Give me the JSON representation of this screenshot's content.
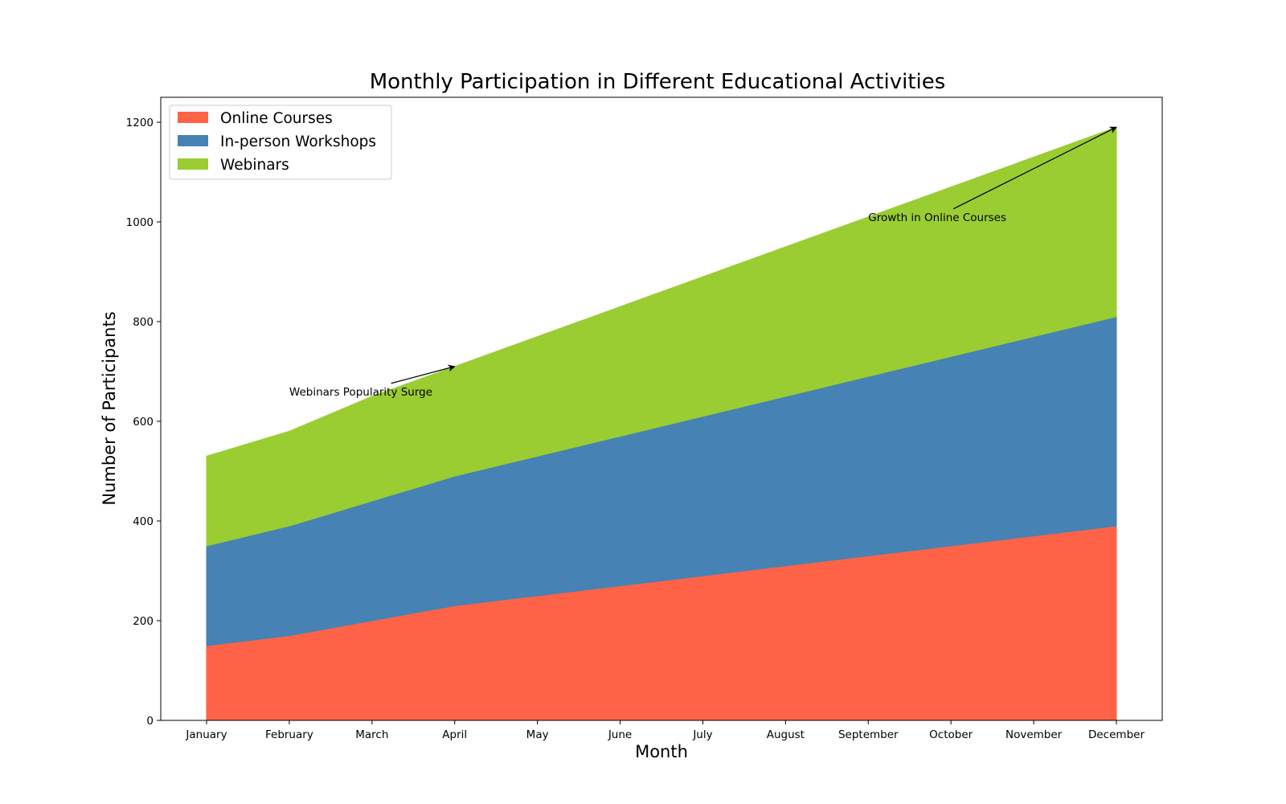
{
  "chart_data": {
    "type": "area",
    "stacked": true,
    "title": "Monthly Participation in Different Educational Activities",
    "xlabel": "Month",
    "ylabel": "Number of Participants",
    "categories": [
      "January",
      "February",
      "March",
      "April",
      "May",
      "June",
      "July",
      "August",
      "September",
      "October",
      "November",
      "December"
    ],
    "ylim": [
      0,
      1250
    ],
    "yticks": [
      0,
      200,
      400,
      600,
      800,
      1000,
      1200
    ],
    "ytick_labels": [
      "0",
      "200",
      "400",
      "600",
      "800",
      "1000",
      "1200"
    ],
    "grid": false,
    "legend_position": "top-left",
    "series": [
      {
        "name": "Online Courses",
        "color": "#FF6347",
        "values": [
          150,
          170,
          200,
          230,
          250,
          270,
          290,
          310,
          330,
          350,
          370,
          390
        ]
      },
      {
        "name": "In-person Workshops",
        "color": "#4682B4",
        "values": [
          200,
          220,
          240,
          260,
          280,
          300,
          320,
          340,
          360,
          380,
          400,
          420
        ]
      },
      {
        "name": "Webinars",
        "color": "#9ACD32",
        "values": [
          180,
          190,
          210,
          220,
          240,
          260,
          280,
          300,
          320,
          340,
          360,
          380
        ]
      }
    ],
    "annotations": [
      {
        "text": "Webinars Popularity Surge",
        "target_category": "April",
        "target_value": 710,
        "text_category": "February",
        "text_value": 660
      },
      {
        "text": "Growth in Online Courses",
        "target_category": "December",
        "target_value": 1190,
        "text_category": "September",
        "text_value": 1010
      }
    ]
  }
}
